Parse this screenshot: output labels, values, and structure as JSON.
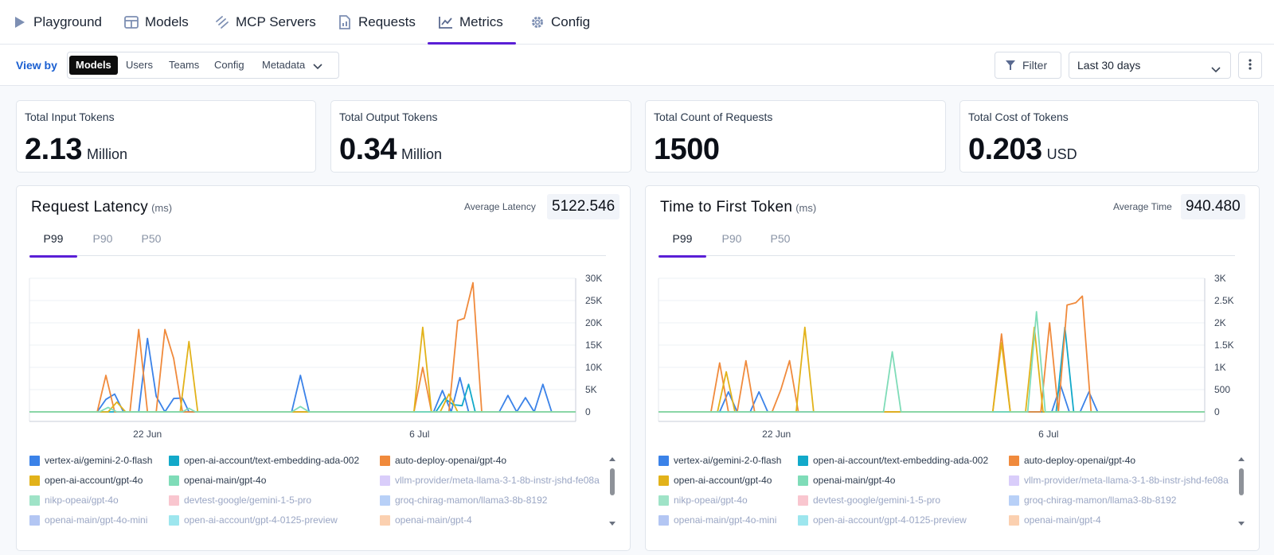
{
  "nav": {
    "tabs": [
      {
        "label": "Playground",
        "icon": "play-icon"
      },
      {
        "label": "Models",
        "icon": "grid-icon"
      },
      {
        "label": "MCP Servers",
        "icon": "mcp-icon"
      },
      {
        "label": "Requests",
        "icon": "document-icon"
      },
      {
        "label": "Metrics",
        "icon": "chart-icon",
        "active": true
      },
      {
        "label": "Config",
        "icon": "gear-icon"
      }
    ]
  },
  "subbar": {
    "view_by_label": "View by",
    "segments": [
      "Models",
      "Users",
      "Teams",
      "Config",
      "Metadata"
    ],
    "active_segment": "Models",
    "filter_label": "Filter",
    "date_range": "Last 30 days"
  },
  "cards": [
    {
      "label": "Total Input Tokens",
      "value": "2.13",
      "unit": "Million"
    },
    {
      "label": "Total Output Tokens",
      "value": "0.34",
      "unit": "Million"
    },
    {
      "label": "Total Count of Requests",
      "value": "1500",
      "unit": ""
    },
    {
      "label": "Total Cost of Tokens",
      "value": "0.203",
      "unit": "USD"
    }
  ],
  "panels": {
    "latency": {
      "title": "Request Latency",
      "unit": "(ms)",
      "avg_label": "Average Latency",
      "avg_value": "5122.546",
      "tabs": [
        "P99",
        "P90",
        "P50"
      ],
      "active_tab": "P99"
    },
    "ttft": {
      "title": "Time to First Token",
      "unit": "(ms)",
      "avg_label": "Average Time",
      "avg_value": "940.480",
      "tabs": [
        "P99",
        "P90",
        "P50"
      ],
      "active_tab": "P99"
    }
  },
  "legend": [
    {
      "name": "vertex-ai/gemini-2-0-flash",
      "color": "#3b82e8",
      "faded": false
    },
    {
      "name": "open-ai-account/text-embedding-ada-002",
      "color": "#12a9c9",
      "faded": false
    },
    {
      "name": "auto-deploy-openai/gpt-4o",
      "color": "#f08a3c",
      "faded": false
    },
    {
      "name": "open-ai-account/gpt-4o",
      "color": "#e2b21a",
      "faded": false
    },
    {
      "name": "openai-main/gpt-4o",
      "color": "#7fdcb8",
      "faded": false
    },
    {
      "name": "vllm-provider/meta-llama-3-1-8b-instr-jshd-fe08a",
      "color": "#d9cdfa",
      "faded": true
    },
    {
      "name": "nikp-opeai/gpt-4o",
      "color": "#9fe3c7",
      "faded": true
    },
    {
      "name": "devtest-google/gemini-1-5-pro",
      "color": "#f9c6cf",
      "faded": true
    },
    {
      "name": "groq-chirag-mamon/llama3-8b-8192",
      "color": "#b8d0f7",
      "faded": true
    },
    {
      "name": "openai-main/gpt-4o-mini",
      "color": "#b3c6f3",
      "faded": true
    },
    {
      "name": "open-ai-account/gpt-4-0125-preview",
      "color": "#9de6ee",
      "faded": true
    },
    {
      "name": "openai-main/gpt-4",
      "color": "#fbd0b0",
      "faded": true
    }
  ],
  "chart_data": [
    {
      "type": "line",
      "title": "Request Latency",
      "ylabel": "",
      "ylim": [
        0,
        30000
      ],
      "yticks": [
        "0",
        "5K",
        "10K",
        "15K",
        "20K",
        "25K",
        "30K"
      ],
      "xticks": [
        "22 Jun",
        "6 Jul"
      ],
      "x_days": 30,
      "series": [
        {
          "name": "vertex-ai/gemini-2-0-flash",
          "color": "#3b82e8",
          "points": [
            [
              0,
              0
            ],
            [
              6.2,
              0
            ],
            [
              7,
              2800
            ],
            [
              7.8,
              4000
            ],
            [
              8.6,
              0
            ],
            [
              10,
              0
            ],
            [
              10.8,
              16500
            ],
            [
              11.6,
              3500
            ],
            [
              12.4,
              0
            ],
            [
              13.2,
              3000
            ],
            [
              14,
              3100
            ],
            [
              14.6,
              0
            ],
            [
              24,
              0
            ],
            [
              24.8,
              8200
            ],
            [
              25.6,
              0
            ],
            [
              37,
              0
            ],
            [
              37.8,
              4800
            ],
            [
              38.6,
              0
            ],
            [
              39.4,
              7700
            ],
            [
              40.2,
              0
            ],
            [
              43,
              0
            ],
            [
              43.8,
              3700
            ],
            [
              44.6,
              0
            ],
            [
              45.4,
              3200
            ],
            [
              46.2,
              0
            ],
            [
              47,
              6200
            ],
            [
              47.8,
              0
            ],
            [
              50,
              0
            ]
          ]
        },
        {
          "name": "open-ai-account/text-embedding-ada-002",
          "color": "#12a9c9",
          "points": [
            [
              0,
              0
            ],
            [
              37.2,
              0
            ],
            [
              38,
              3000
            ],
            [
              38.8,
              1600
            ],
            [
              39.6,
              1400
            ],
            [
              40.2,
              6200
            ],
            [
              40.8,
              0
            ],
            [
              50,
              0
            ]
          ]
        },
        {
          "name": "auto-deploy-openai/gpt-4o",
          "color": "#f08a3c",
          "points": [
            [
              0,
              0
            ],
            [
              6.2,
              0
            ],
            [
              7,
              8200
            ],
            [
              7.8,
              0
            ],
            [
              9.2,
              0
            ],
            [
              10,
              18500
            ],
            [
              10.8,
              0
            ],
            [
              11.6,
              0
            ],
            [
              12.4,
              18500
            ],
            [
              13.2,
              12000
            ],
            [
              14,
              0
            ],
            [
              35.2,
              0
            ],
            [
              36,
              10000
            ],
            [
              36.8,
              0
            ],
            [
              38.4,
              0
            ],
            [
              39.2,
              20500
            ],
            [
              39.8,
              21000
            ],
            [
              40.6,
              29000
            ],
            [
              41.4,
              0
            ],
            [
              50,
              0
            ]
          ]
        },
        {
          "name": "open-ai-account/gpt-4o",
          "color": "#e2b21a",
          "points": [
            [
              0,
              0
            ],
            [
              7.2,
              0
            ],
            [
              8,
              2200
            ],
            [
              8.8,
              0
            ],
            [
              13.8,
              0
            ],
            [
              14.6,
              15800
            ],
            [
              15.4,
              0
            ],
            [
              35.2,
              0
            ],
            [
              36,
              19000
            ],
            [
              36.8,
              0
            ],
            [
              37.6,
              0
            ],
            [
              38.4,
              4000
            ],
            [
              39.2,
              0
            ],
            [
              41,
              0
            ],
            [
              50,
              0
            ]
          ]
        },
        {
          "name": "openai-main/gpt-4o",
          "color": "#7fdcb8",
          "points": [
            [
              0,
              0
            ],
            [
              6.4,
              0
            ],
            [
              7.2,
              1000
            ],
            [
              8,
              0
            ],
            [
              14,
              0
            ],
            [
              14.6,
              800
            ],
            [
              15.2,
              0
            ],
            [
              24,
              0
            ],
            [
              24.8,
              1200
            ],
            [
              25.6,
              0
            ],
            [
              50,
              0
            ]
          ]
        }
      ]
    },
    {
      "type": "line",
      "title": "Time to First Token",
      "ylabel": "",
      "ylim": [
        0,
        3000
      ],
      "yticks": [
        "0",
        "500",
        "1K",
        "1.5K",
        "2K",
        "2.5K",
        "3K"
      ],
      "xticks": [
        "22 Jun",
        "6 Jul"
      ],
      "x_days": 30,
      "series": [
        {
          "name": "vertex-ai/gemini-2-0-flash",
          "color": "#3b82e8",
          "points": [
            [
              0,
              0
            ],
            [
              5.6,
              0
            ],
            [
              6.4,
              450
            ],
            [
              7.2,
              0
            ],
            [
              8.4,
              0
            ],
            [
              9.2,
              450
            ],
            [
              10,
              0
            ],
            [
              36,
              0
            ],
            [
              36.8,
              600
            ],
            [
              37.6,
              0
            ],
            [
              38.6,
              0
            ],
            [
              39.4,
              450
            ],
            [
              40.2,
              0
            ],
            [
              50,
              0
            ]
          ]
        },
        {
          "name": "open-ai-account/text-embedding-ada-002",
          "color": "#12a9c9",
          "points": [
            [
              0,
              0
            ],
            [
              36.4,
              0
            ],
            [
              37.2,
              1900
            ],
            [
              38,
              0
            ],
            [
              50,
              0
            ]
          ]
        },
        {
          "name": "auto-deploy-openai/gpt-4o",
          "color": "#f08a3c",
          "points": [
            [
              0,
              0
            ],
            [
              4.8,
              0
            ],
            [
              5.6,
              1100
            ],
            [
              6.4,
              0
            ],
            [
              7.2,
              0
            ],
            [
              8,
              1150
            ],
            [
              8.8,
              0
            ],
            [
              10.4,
              0
            ],
            [
              11.2,
              500
            ],
            [
              12,
              1150
            ],
            [
              12.8,
              0
            ],
            [
              30.6,
              0
            ],
            [
              31.4,
              1750
            ],
            [
              32.2,
              0
            ],
            [
              35,
              0
            ],
            [
              35.8,
              2000
            ],
            [
              36.6,
              0
            ],
            [
              37.4,
              2400
            ],
            [
              38.2,
              2450
            ],
            [
              38.8,
              2600
            ],
            [
              39.6,
              0
            ],
            [
              50,
              0
            ]
          ]
        },
        {
          "name": "open-ai-account/gpt-4o",
          "color": "#e2b21a",
          "points": [
            [
              0,
              0
            ],
            [
              5.4,
              0
            ],
            [
              6.2,
              900
            ],
            [
              7,
              0
            ],
            [
              12.6,
              0
            ],
            [
              13.4,
              1900
            ],
            [
              14.2,
              0
            ],
            [
              30.6,
              0
            ],
            [
              31.4,
              1550
            ],
            [
              32.2,
              0
            ],
            [
              33.6,
              0
            ],
            [
              34.4,
              1900
            ],
            [
              35.2,
              0
            ],
            [
              50,
              0
            ]
          ]
        },
        {
          "name": "openai-main/gpt-4o",
          "color": "#7fdcb8",
          "points": [
            [
              0,
              0
            ],
            [
              20.6,
              0
            ],
            [
              21.4,
              1350
            ],
            [
              22.2,
              0
            ],
            [
              33.8,
              0
            ],
            [
              34.6,
              2250
            ],
            [
              35.4,
              0
            ],
            [
              50,
              0
            ]
          ]
        }
      ]
    }
  ]
}
